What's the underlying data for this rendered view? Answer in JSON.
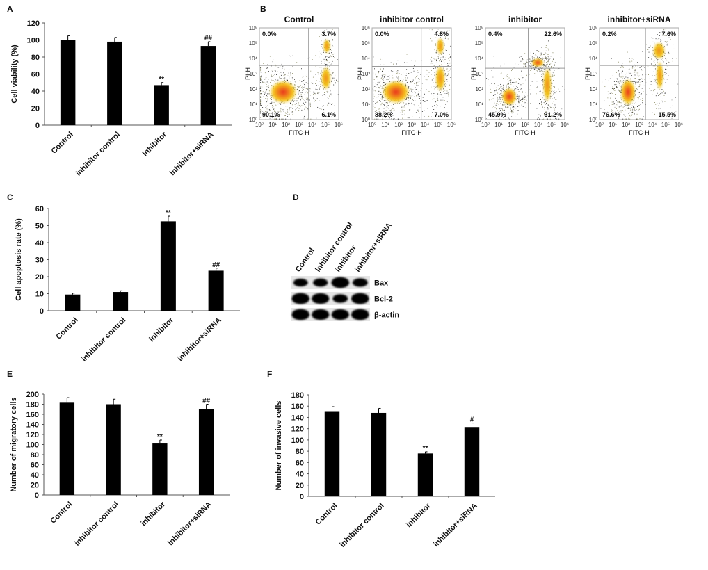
{
  "panels": {
    "A": "A",
    "B": "B",
    "C": "C",
    "D": "D",
    "E": "E",
    "F": "F"
  },
  "chart_data": [
    {
      "panel": "A",
      "type": "bar",
      "categories": [
        "Control",
        "inhibitor control",
        "inhibitor",
        "inhibitor+siRNA"
      ],
      "values": [
        100,
        98,
        47,
        93
      ],
      "errors": [
        5,
        5,
        3,
        5
      ],
      "annotations": [
        "",
        "",
        "**",
        "##"
      ],
      "ylabel": "Cell viability (%)",
      "xlabel": "",
      "ylim": [
        0,
        120
      ],
      "yticks": [
        0,
        20,
        40,
        60,
        80,
        100,
        120
      ],
      "bar_color": "#000000"
    },
    {
      "panel": "C",
      "type": "bar",
      "categories": [
        "Control",
        "inhibitor control",
        "inhibitor",
        "inhibitor+siRNA"
      ],
      "values": [
        9.5,
        11,
        52.5,
        23.5
      ],
      "errors": [
        0.8,
        0.7,
        3,
        1.5
      ],
      "annotations": [
        "",
        "",
        "**",
        "##"
      ],
      "ylabel": "Cell apoptosis rate (%)",
      "xlabel": "",
      "ylim": [
        0,
        60
      ],
      "yticks": [
        0,
        10,
        20,
        30,
        40,
        50,
        60
      ],
      "bar_color": "#000000"
    },
    {
      "panel": "E",
      "type": "bar",
      "categories": [
        "Control",
        "inhibitor control",
        "inhibitor",
        "inhibitor+siRNA"
      ],
      "values": [
        183,
        180,
        102,
        171
      ],
      "errors": [
        10,
        10,
        7,
        9
      ],
      "annotations": [
        "",
        "",
        "**",
        "##"
      ],
      "ylabel": "Number of migratory cells",
      "xlabel": "",
      "ylim": [
        0,
        200
      ],
      "yticks": [
        0,
        20,
        40,
        60,
        80,
        100,
        120,
        140,
        160,
        180,
        200
      ],
      "bar_color": "#000000"
    },
    {
      "panel": "F",
      "type": "bar",
      "categories": [
        "Control",
        "inhibitor control",
        "inhibitor",
        "inhibitor+siRNA"
      ],
      "values": [
        151,
        148,
        76,
        123
      ],
      "errors": [
        8,
        8,
        3,
        7
      ],
      "annotations": [
        "",
        "",
        "**",
        "#"
      ],
      "ylabel": "Number of invasive cells",
      "xlabel": "",
      "ylim": [
        0,
        180
      ],
      "yticks": [
        0,
        20,
        40,
        60,
        80,
        100,
        120,
        140,
        160,
        180
      ],
      "bar_color": "#000000"
    },
    {
      "panel": "B",
      "type": "scatter",
      "xlabel": "FITC-H",
      "ylabel": "PI-H",
      "axis_ticks": [
        "10⁰",
        "10¹",
        "10²",
        "10³",
        "10⁴",
        "10⁵",
        "10⁶"
      ],
      "plots": [
        {
          "title": "Control",
          "quadrants": {
            "ul": "0.0%",
            "ur": "3.7%",
            "ll": "90.1%",
            "lr": "6.1%"
          }
        },
        {
          "title": "inhibitor control",
          "quadrants": {
            "ul": "0.0%",
            "ur": "4.8%",
            "ll": "88.2%",
            "lr": "7.0%"
          }
        },
        {
          "title": "inhibitor",
          "quadrants": {
            "ul": "0.4%",
            "ur": "22.6%",
            "ll": "45.9%",
            "lr": "31.2%"
          }
        },
        {
          "title": "inhibitor+siRNA",
          "quadrants": {
            "ul": "0.2%",
            "ur": "7.6%",
            "ll": "76.6%",
            "lr": "15.5%"
          }
        }
      ]
    }
  ],
  "western_blot": {
    "lanes": [
      "Control",
      "inhibitor control",
      "inhibitor",
      "inhibitor+siRNA"
    ],
    "proteins": [
      {
        "name": "Bax",
        "intensity": [
          0.45,
          0.5,
          1.0,
          0.55
        ]
      },
      {
        "name": "Bcl-2",
        "intensity": [
          1.0,
          0.95,
          0.55,
          1.0
        ]
      },
      {
        "name": "β-actin",
        "intensity": [
          1.0,
          0.95,
          0.95,
          1.0
        ]
      }
    ]
  }
}
